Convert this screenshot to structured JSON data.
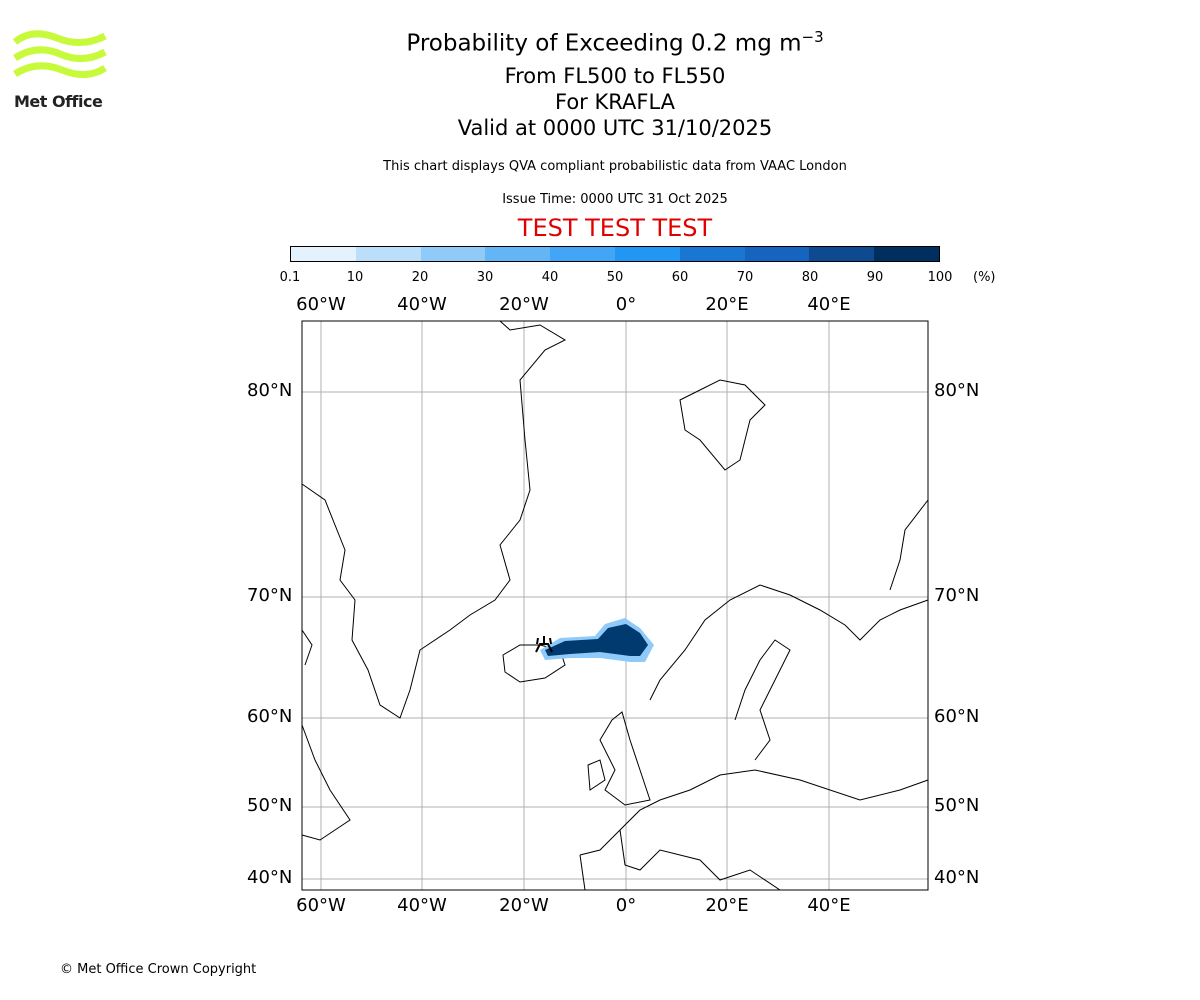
{
  "logo": {
    "text": "Met Office",
    "color": "#c8fa3c"
  },
  "header": {
    "title": "Probability of Exceeding 0.2 mg m",
    "title_sup": "−3",
    "levels": "From FL500 to FL550",
    "volcano": "For KRAFLA",
    "valid": "Valid at 0000 UTC 31/10/2025",
    "description": "This chart displays QVA compliant probabilistic data from VAAC London",
    "issue_time": "Issue Time: 0000 UTC 31 Oct 2025",
    "test_banner": "TEST TEST TEST"
  },
  "colorbar": {
    "ticks": [
      "0.1",
      "10",
      "20",
      "30",
      "40",
      "50",
      "60",
      "70",
      "80",
      "90",
      "100"
    ],
    "unit": "(%)",
    "colors": [
      "#e3f2fd",
      "#bbdefb",
      "#90caf9",
      "#64b5f6",
      "#42a5f5",
      "#2196f3",
      "#1976d2",
      "#1565c0",
      "#0d4a8f",
      "#002f5f"
    ]
  },
  "map": {
    "lon_labels": [
      "60°W",
      "40°W",
      "20°W",
      "0°",
      "20°E",
      "40°E"
    ],
    "lat_labels": [
      "80°N",
      "70°N",
      "60°N",
      "50°N",
      "40°N"
    ],
    "volcano_icon": "volcano-icon",
    "plume_color": "#003a6e"
  },
  "footer": {
    "copyright": "© Met Office Crown Copyright"
  }
}
